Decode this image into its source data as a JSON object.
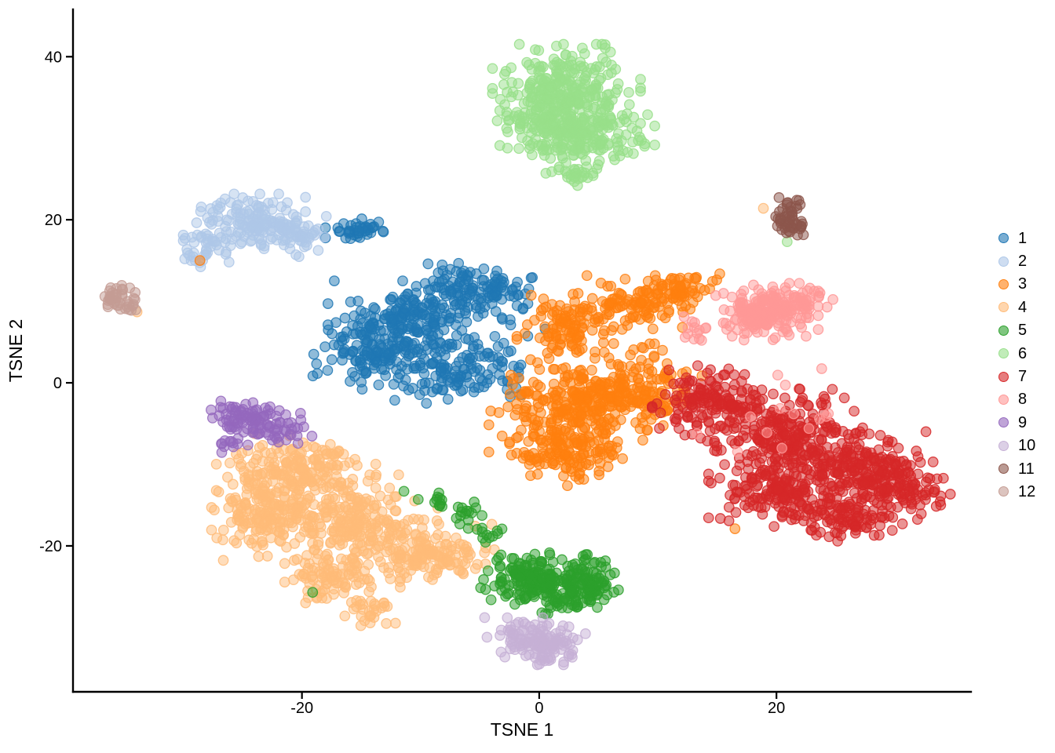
{
  "chart_data": {
    "type": "scatter",
    "title": "",
    "xlabel": "TSNE 1",
    "ylabel": "TSNE 2",
    "xlim": [
      -39.3,
      36.4
    ],
    "ylim": [
      -37.9,
      45.8
    ],
    "x_ticks": [
      -20,
      0,
      20
    ],
    "y_ticks": [
      -20,
      0,
      20,
      40
    ],
    "grid": false,
    "legend_position": "right",
    "point_style": {
      "radius": 6.2,
      "fill_opacity": 0.5,
      "stroke_opacity": 0.85,
      "stroke_width": 1.3
    },
    "clusters": [
      {
        "label": "1",
        "color": "#1f77b4",
        "components": [
          {
            "cx": -5.3,
            "cy": 11.3,
            "sx": 2.2,
            "sy": 1.6,
            "n": 130
          },
          {
            "cx": -11.3,
            "cy": 7.7,
            "sx": 2.8,
            "sy": 2.0,
            "n": 180
          },
          {
            "cx": -13.8,
            "cy": 3.6,
            "sx": 2.2,
            "sy": 1.9,
            "n": 120
          },
          {
            "cx": -6.8,
            "cy": 2.1,
            "sx": 2.6,
            "sy": 2.1,
            "n": 140
          },
          {
            "cx": -14.9,
            "cy": 18.8,
            "sx": 1.3,
            "sy": 0.55,
            "n": 40
          }
        ]
      },
      {
        "label": "2",
        "color": "#aec7e8",
        "components": [
          {
            "cx": -24.5,
            "cy": 19.8,
            "sx": 2.0,
            "sy": 1.4,
            "n": 130
          },
          {
            "cx": -20.4,
            "cy": 18.0,
            "sx": 1.3,
            "sy": 1.1,
            "n": 55
          },
          {
            "cx": -27.6,
            "cy": 16.9,
            "sx": 1.0,
            "sy": 1.0,
            "n": 30
          },
          {
            "cx": -29.3,
            "cy": 15.8,
            "sx": 0.5,
            "sy": 0.8,
            "n": 12
          }
        ]
      },
      {
        "label": "3",
        "color": "#ff7f0e",
        "components": [
          {
            "cx": 8.3,
            "cy": 9.8,
            "sx": 2.3,
            "sy": 1.4,
            "n": 110
          },
          {
            "cx": 12.1,
            "cy": 11.7,
            "sx": 1.3,
            "sy": 0.9,
            "n": 45
          },
          {
            "cx": 2.2,
            "cy": 6.5,
            "sx": 1.7,
            "sy": 2.3,
            "n": 110
          },
          {
            "cx": 3.2,
            "cy": -2.5,
            "sx": 3.1,
            "sy": 2.6,
            "n": 300
          },
          {
            "cx": 2.3,
            "cy": -8.8,
            "sx": 2.0,
            "sy": 1.7,
            "n": 130
          },
          {
            "cx": 8.8,
            "cy": -0.5,
            "sx": 2.2,
            "sy": 2.2,
            "n": 110
          }
        ]
      },
      {
        "label": "4",
        "color": "#ffbb78",
        "components": [
          {
            "cx": -20.5,
            "cy": -10.8,
            "sx": 2.8,
            "sy": 1.9,
            "n": 200
          },
          {
            "cx": -23.3,
            "cy": -16.5,
            "sx": 1.8,
            "sy": 2.2,
            "n": 170
          },
          {
            "cx": -15.5,
            "cy": -16.8,
            "sx": 2.9,
            "sy": 2.3,
            "n": 210
          },
          {
            "cx": -9.3,
            "cy": -21.0,
            "sx": 2.3,
            "sy": 1.7,
            "n": 150
          },
          {
            "cx": -17.5,
            "cy": -23.5,
            "sx": 2.0,
            "sy": 1.5,
            "n": 100
          },
          {
            "cx": -14.3,
            "cy": -27.8,
            "sx": 1.0,
            "sy": 0.9,
            "n": 30
          }
        ]
      },
      {
        "label": "5",
        "color": "#2ca02c",
        "components": [
          {
            "cx": 1.5,
            "cy": -24.5,
            "sx": 2.0,
            "sy": 1.6,
            "n": 150
          },
          {
            "cx": -1.5,
            "cy": -23.5,
            "sx": 1.5,
            "sy": 1.3,
            "n": 80
          },
          {
            "cx": 3.8,
            "cy": -24.8,
            "sx": 1.2,
            "sy": 1.4,
            "n": 80
          },
          {
            "cx": -8.3,
            "cy": -14.3,
            "sx": 0.6,
            "sy": 0.6,
            "n": 10
          },
          {
            "cx": -6.0,
            "cy": -16.3,
            "sx": 0.7,
            "sy": 0.7,
            "n": 14
          },
          {
            "cx": -4.3,
            "cy": -18.4,
            "sx": 0.7,
            "sy": 0.7,
            "n": 12
          }
        ]
      },
      {
        "label": "6",
        "color": "#98df8a",
        "components": [
          {
            "cx": 2.3,
            "cy": 36.0,
            "sx": 2.6,
            "sy": 2.3,
            "n": 240
          },
          {
            "cx": 3.5,
            "cy": 30.5,
            "sx": 2.6,
            "sy": 2.0,
            "n": 200
          },
          {
            "cx": 1.0,
            "cy": 32.5,
            "sx": 1.8,
            "sy": 1.8,
            "n": 100
          },
          {
            "cx": 2.7,
            "cy": 25.8,
            "sx": 0.9,
            "sy": 1.0,
            "n": 25
          }
        ]
      },
      {
        "label": "7",
        "color": "#d62728",
        "components": [
          {
            "cx": 14.8,
            "cy": -2.6,
            "sx": 2.2,
            "sy": 2.0,
            "n": 170
          },
          {
            "cx": 21.5,
            "cy": -6.5,
            "sx": 2.8,
            "sy": 2.4,
            "n": 230
          },
          {
            "cx": 27.3,
            "cy": -10.8,
            "sx": 2.6,
            "sy": 2.0,
            "n": 220
          },
          {
            "cx": 19.8,
            "cy": -13.3,
            "sx": 2.3,
            "sy": 1.8,
            "n": 160
          },
          {
            "cx": 26.0,
            "cy": -16.3,
            "sx": 2.3,
            "sy": 1.3,
            "n": 110
          },
          {
            "cx": 31.3,
            "cy": -13.5,
            "sx": 1.4,
            "sy": 1.6,
            "n": 60
          }
        ]
      },
      {
        "label": "8",
        "color": "#ff9896",
        "components": [
          {
            "cx": 19.2,
            "cy": 8.6,
            "sx": 1.8,
            "sy": 1.5,
            "n": 200
          },
          {
            "cx": 22.6,
            "cy": 10.2,
            "sx": 0.9,
            "sy": 0.8,
            "n": 25
          },
          {
            "cx": 13.2,
            "cy": 6.8,
            "sx": 0.8,
            "sy": 1.0,
            "n": 14
          },
          {
            "cx": 20.5,
            "cy": -4.5,
            "sx": 3.0,
            "sy": 2.6,
            "n": 14
          }
        ]
      },
      {
        "label": "9",
        "color": "#9467bd",
        "components": [
          {
            "cx": -24.8,
            "cy": -4.4,
            "sx": 1.4,
            "sy": 0.9,
            "n": 75
          },
          {
            "cx": -21.8,
            "cy": -5.9,
            "sx": 1.1,
            "sy": 0.9,
            "n": 35
          },
          {
            "cx": -25.7,
            "cy": -7.3,
            "sx": 0.7,
            "sy": 0.6,
            "n": 12
          }
        ]
      },
      {
        "label": "10",
        "color": "#c5b0d5",
        "components": [
          {
            "cx": 0.3,
            "cy": -31.7,
            "sx": 1.5,
            "sy": 1.2,
            "n": 120
          },
          {
            "cx": -2.3,
            "cy": -30.5,
            "sx": 0.6,
            "sy": 0.6,
            "n": 10
          }
        ]
      },
      {
        "label": "11",
        "color": "#8c564b",
        "components": [
          {
            "cx": 21.1,
            "cy": 20.3,
            "sx": 0.55,
            "sy": 1.1,
            "n": 45
          },
          {
            "cx": 22.1,
            "cy": 18.9,
            "sx": 0.4,
            "sy": 0.5,
            "n": 8
          }
        ]
      },
      {
        "label": "12",
        "color": "#c49c94",
        "components": [
          {
            "cx": -35.4,
            "cy": 10.3,
            "sx": 0.65,
            "sy": 0.7,
            "n": 32
          },
          {
            "cx": -34.6,
            "cy": 9.2,
            "sx": 0.4,
            "sy": 0.4,
            "n": 8
          }
        ]
      }
    ],
    "outlier_points": [
      {
        "x": -28.6,
        "y": 15.0,
        "cluster": "3"
      },
      {
        "x": -33.9,
        "y": 8.7,
        "cluster": "4"
      },
      {
        "x": 18.9,
        "y": 21.4,
        "cluster": "4"
      },
      {
        "x": 20.9,
        "y": 17.3,
        "cluster": "6"
      },
      {
        "x": -19.1,
        "y": -25.7,
        "cluster": "5"
      },
      {
        "x": 16.5,
        "y": -17.9,
        "cluster": "3"
      },
      {
        "x": -4.6,
        "y": -28.8,
        "cluster": "10"
      },
      {
        "x": -4.4,
        "y": -31.2,
        "cluster": "10"
      },
      {
        "x": -10.2,
        "y": -14.3,
        "cluster": "5"
      },
      {
        "x": -11.4,
        "y": -13.3,
        "cluster": "5"
      },
      {
        "x": 0.5,
        "y": 6.6,
        "cluster": "1"
      },
      {
        "x": -2.4,
        "y": 7.1,
        "cluster": "1"
      }
    ]
  }
}
